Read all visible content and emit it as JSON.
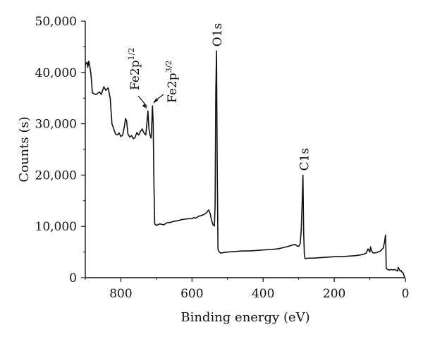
{
  "chart_data": {
    "type": "line",
    "title": "",
    "xlabel": "Binding energy (eV)",
    "ylabel": "Counts (s)",
    "xlim": [
      900,
      0
    ],
    "ylim": [
      0,
      50000
    ],
    "x_reversed": true,
    "grid": false,
    "legend": "none",
    "x_ticks": [
      {
        "value": 800,
        "label": "800"
      },
      {
        "value": 600,
        "label": "600"
      },
      {
        "value": 400,
        "label": "400"
      },
      {
        "value": 200,
        "label": "200"
      },
      {
        "value": 0,
        "label": "0"
      }
    ],
    "y_ticks": [
      {
        "value": 0,
        "label": "0"
      },
      {
        "value": 10000,
        "label": "10,000"
      },
      {
        "value": 20000,
        "label": "20,000"
      },
      {
        "value": 30000,
        "label": "30,000"
      },
      {
        "value": 40000,
        "label": "40,000"
      },
      {
        "value": 50000,
        "label": "50,000"
      }
    ],
    "series": [
      {
        "color": "#111111",
        "x": [
          900,
          895,
          893,
          890,
          887,
          884,
          880,
          870,
          860,
          855,
          848,
          842,
          836,
          830,
          825,
          820,
          815,
          810,
          805,
          800,
          795,
          790,
          787,
          784,
          780,
          775,
          770,
          765,
          760,
          755,
          750,
          745,
          740,
          735,
          730,
          727,
          724,
          721,
          718,
          715,
          713,
          711,
          709,
          707,
          705,
          700,
          690,
          680,
          670,
          660,
          650,
          640,
          630,
          620,
          610,
          600,
          595,
          590,
          585,
          580,
          570,
          560,
          553,
          549,
          545,
          541,
          537,
          535,
          533,
          531,
          529,
          527,
          525,
          520,
          500,
          480,
          460,
          440,
          420,
          400,
          380,
          360,
          340,
          320,
          310,
          305,
          300,
          296,
          293,
          290,
          288,
          286,
          284,
          282,
          280,
          275,
          260,
          240,
          220,
          200,
          180,
          160,
          140,
          120,
          110,
          105,
          100,
          98,
          95,
          90,
          80,
          70,
          62,
          58,
          56,
          55,
          54,
          52,
          50,
          45,
          40,
          35,
          30,
          25,
          22,
          20,
          15,
          12,
          10,
          8,
          6,
          4,
          2
        ],
        "y": [
          41500,
          42000,
          41000,
          42200,
          41000,
          39500,
          36000,
          35700,
          36200,
          35700,
          37200,
          36500,
          37000,
          35000,
          30000,
          29000,
          28000,
          27800,
          28200,
          27500,
          27800,
          29500,
          31000,
          30600,
          28000,
          27400,
          27700,
          27100,
          27300,
          28300,
          27800,
          28500,
          29000,
          28200,
          27800,
          30000,
          32500,
          29000,
          27800,
          27200,
          30000,
          33500,
          30000,
          18000,
          10500,
          10200,
          10500,
          10300,
          10700,
          10800,
          11000,
          11100,
          11300,
          11400,
          11500,
          11500,
          11700,
          11600,
          11800,
          12000,
          12200,
          12600,
          13200,
          12500,
          11200,
          10300,
          10100,
          14000,
          36000,
          44200,
          22000,
          5500,
          5200,
          4800,
          5000,
          5100,
          5200,
          5200,
          5300,
          5400,
          5500,
          5600,
          5900,
          6300,
          6500,
          6200,
          6100,
          6600,
          9000,
          15000,
          20000,
          9000,
          4600,
          3700,
          3700,
          3800,
          3800,
          3900,
          4000,
          4100,
          4100,
          4200,
          4300,
          4500,
          4800,
          5600,
          5000,
          6000,
          5200,
          4800,
          4900,
          5200,
          5800,
          7200,
          8300,
          6000,
          1800,
          1700,
          1600,
          1500,
          1600,
          1500,
          1600,
          1400,
          1300,
          2000,
          1300,
          1400,
          1100,
          1000,
          900,
          400,
          100
        ]
      }
    ],
    "annotations": [
      {
        "base": "Fe2p",
        "sup": "1/2",
        "x": 724,
        "y": 32500
      },
      {
        "base": "Fe2p",
        "sup": "3/2",
        "x": 711,
        "y": 33500
      },
      {
        "base": "O1s",
        "sup": "",
        "x": 531,
        "y": 44200
      },
      {
        "base": "C1s",
        "sup": "",
        "x": 286,
        "y": 20000
      }
    ]
  }
}
